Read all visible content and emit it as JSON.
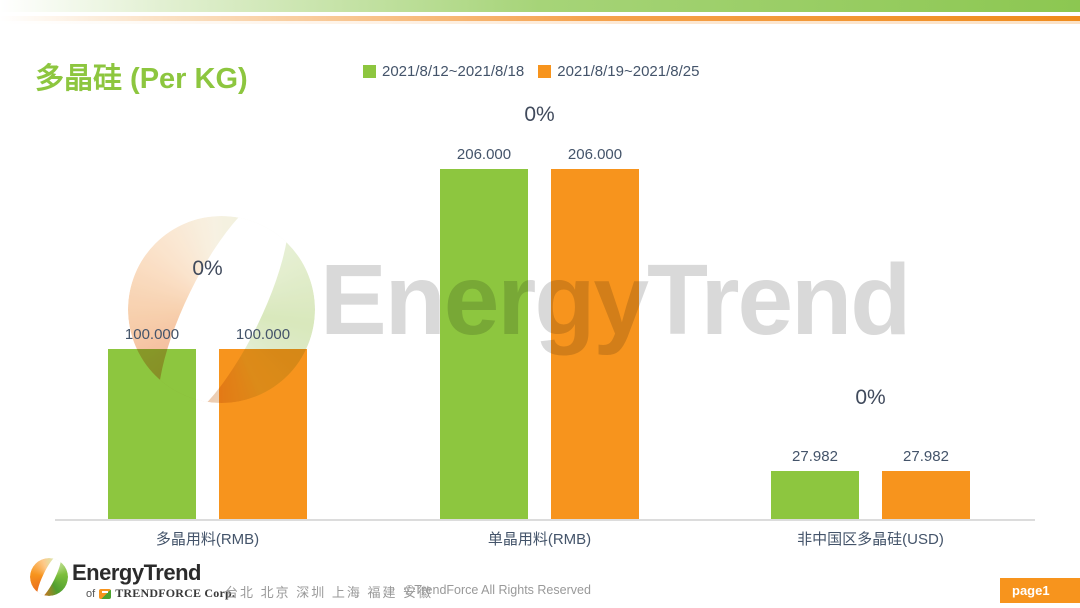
{
  "page": {
    "title": "多晶硅 (Per KG)",
    "page_badge": "page1"
  },
  "legend": [
    {
      "label": "2021/8/12~2021/8/18",
      "color": "#8dc63f"
    },
    {
      "label": "2021/8/19~2021/8/25",
      "color": "#f7941d"
    }
  ],
  "chart_data": {
    "type": "bar",
    "title": "多晶硅 (Per KG)",
    "categories": [
      "多晶用料(RMB)",
      "单晶用料(RMB)",
      "非中国区多晶硅(USD)"
    ],
    "series": [
      {
        "name": "2021/8/12~2021/8/18",
        "color": "#8dc63f",
        "values": [
          100.0,
          206.0,
          27.982
        ],
        "labels": [
          "100.000",
          "206.000",
          "27.982"
        ]
      },
      {
        "name": "2021/8/19~2021/8/25",
        "color": "#f7941d",
        "values": [
          100.0,
          206.0,
          27.982
        ],
        "labels": [
          "100.000",
          "206.000",
          "27.982"
        ]
      }
    ],
    "change_labels": [
      "0%",
      "0%",
      "0%"
    ],
    "ylim": [
      0,
      206
    ],
    "xlabel": "",
    "ylabel": "",
    "grid": false,
    "legend_position": "top"
  },
  "watermark": {
    "text": "EnergyTrend"
  },
  "footer": {
    "logo_text": "EnergyTrend",
    "logo_sub_prefix": "of",
    "logo_sub_name": "TRENDFORCE Corp.",
    "cities": "台北 北京 深圳 上海 福建 安徽",
    "copyright": "©TrendForce All Rights Reserved"
  }
}
